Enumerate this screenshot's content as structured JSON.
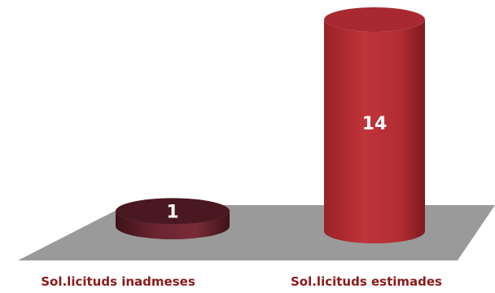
{
  "chart_data": {
    "type": "bar",
    "style": "3d-cylinder",
    "categories": [
      "Sol.licituds inadmeses",
      "Sol.licituds estimades"
    ],
    "values": [
      1,
      14
    ],
    "data_labels": [
      "1",
      "14"
    ],
    "colors": [
      "#6a2430",
      "#c0343a"
    ],
    "label_color": "#8b1a1a",
    "floor_color": "#9a9a9a",
    "title": "",
    "xlabel": "",
    "ylabel": "",
    "ylim": [
      0,
      14
    ],
    "grid": false,
    "legend": "none"
  }
}
